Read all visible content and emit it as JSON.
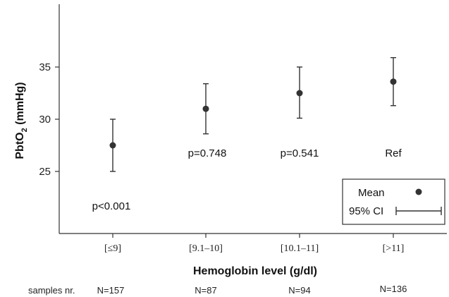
{
  "chart_data": {
    "type": "scatter",
    "ylabel_main": "PbtO",
    "ylabel_sub": "2",
    "ylabel_unit": " (mmHg)",
    "xlabel": "Hemoglobin level (g/dl)",
    "ylim": [
      20,
      40
    ],
    "yticks": [
      25,
      30,
      35
    ],
    "categories": [
      "[≤9]",
      "[9.1–10]",
      "[10.1–11]",
      "[>11]"
    ],
    "mean": [
      27.5,
      31.0,
      32.5,
      33.6
    ],
    "ci_low": [
      25.0,
      28.6,
      30.1,
      31.3
    ],
    "ci_high": [
      30.0,
      33.4,
      35.0,
      35.9
    ],
    "annotations": [
      "p<0.001",
      "p=0.748",
      "p=0.541",
      "Ref"
    ],
    "samples_label": "samples nr.",
    "samples": [
      "N=157",
      "N=87",
      "N=94",
      "N=136"
    ],
    "legend": {
      "mean_label": "Mean",
      "ci_label": "95% CI",
      "position": "bottom-right"
    },
    "grid": false
  },
  "colors": {
    "marker": "#333333",
    "axis": "#333333"
  }
}
